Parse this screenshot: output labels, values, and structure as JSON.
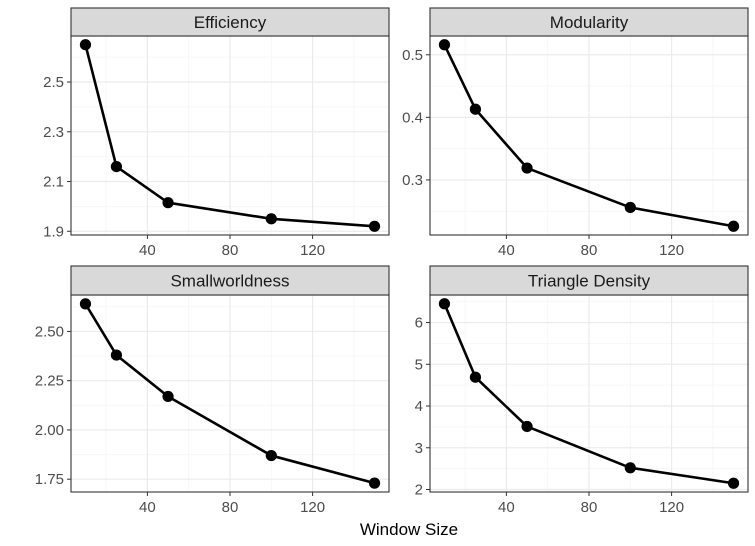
{
  "chart_data": {
    "type": "line",
    "xlabel": "Window Size",
    "x": [
      10,
      25,
      50,
      100,
      150
    ],
    "x_ticks": [
      40,
      80,
      120
    ],
    "xlim": [
      3,
      157
    ],
    "grid": true,
    "legend": "none",
    "colors": {
      "line": "#000000",
      "strip_fill": "#d9d9d9",
      "grid_major": "#ebebeb",
      "grid_minor": "#f5f5f5",
      "panel_border": "#333333"
    },
    "panels": [
      {
        "title": "Efficiency",
        "values": [
          2.65,
          2.16,
          2.015,
          1.95,
          1.92
        ],
        "ylim": [
          1.885,
          2.685
        ],
        "y_ticks": [
          1.9,
          2.1,
          2.3,
          2.5
        ],
        "y_tick_labels": [
          "1.9",
          "2.1",
          "2.3",
          "2.5"
        ]
      },
      {
        "title": "Modularity",
        "values": [
          0.516,
          0.413,
          0.319,
          0.256,
          0.226
        ],
        "ylim": [
          0.212,
          0.53
        ],
        "y_ticks": [
          0.3,
          0.4,
          0.5
        ],
        "y_tick_labels": [
          "0.3",
          "0.4",
          "0.5"
        ]
      },
      {
        "title": "Smallworldness",
        "values": [
          2.64,
          2.38,
          2.17,
          1.87,
          1.73
        ],
        "ylim": [
          1.685,
          2.685
        ],
        "y_ticks": [
          1.75,
          2.0,
          2.25,
          2.5
        ],
        "y_tick_labels": [
          "1.75",
          "2.00",
          "2.25",
          "2.50"
        ]
      },
      {
        "title": "Triangle Density",
        "values": [
          6.45,
          4.69,
          3.51,
          2.52,
          2.15
        ],
        "ylim": [
          1.94,
          6.66
        ],
        "y_ticks": [
          2,
          3,
          4,
          5,
          6
        ],
        "y_tick_labels": [
          "2",
          "3",
          "4",
          "5",
          "6"
        ]
      }
    ]
  }
}
